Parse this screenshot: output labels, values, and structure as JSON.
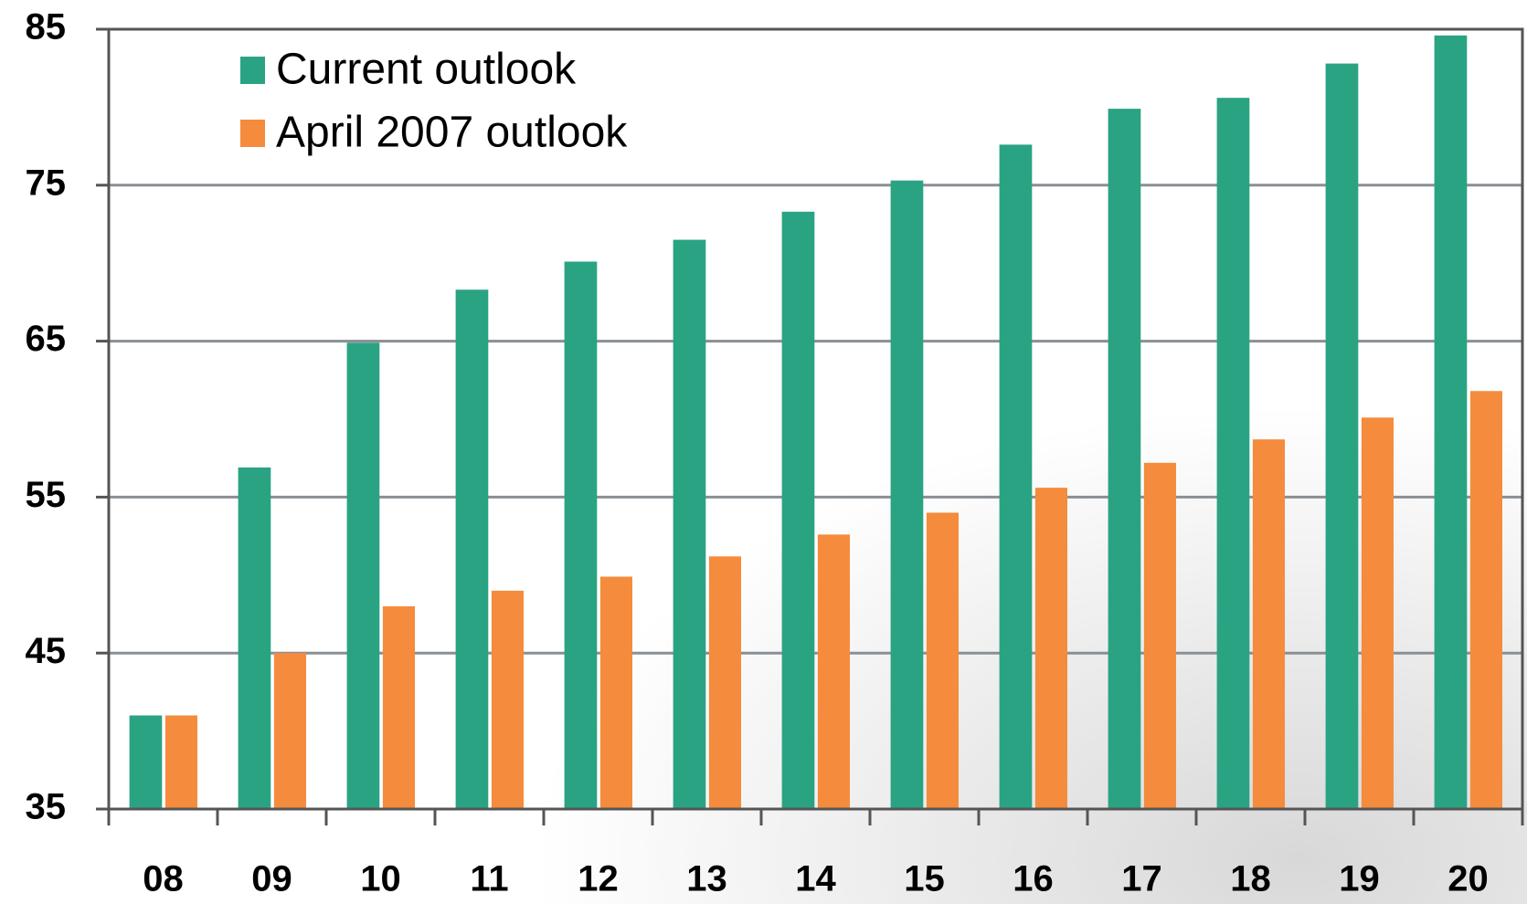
{
  "chart_data": {
    "type": "bar",
    "categories": [
      "08",
      "09",
      "10",
      "11",
      "12",
      "13",
      "14",
      "15",
      "16",
      "17",
      "18",
      "19",
      "20"
    ],
    "series": [
      {
        "name": "Current outlook",
        "color": "#2aa383",
        "values": [
          41,
          56.9,
          64.9,
          68.3,
          70.1,
          71.5,
          73.3,
          75.3,
          77.6,
          79.9,
          80.6,
          82.8,
          84.6
        ]
      },
      {
        "name": "April 2007 outlook",
        "color": "#f58b3c",
        "values": [
          41,
          45,
          48,
          49,
          49.9,
          51.2,
          52.6,
          54,
          55.6,
          57.2,
          58.7,
          60.1,
          61.8
        ]
      }
    ],
    "ylim": [
      35,
      85
    ],
    "yticks": [
      35,
      45,
      55,
      65,
      75,
      85
    ],
    "grid": true
  }
}
